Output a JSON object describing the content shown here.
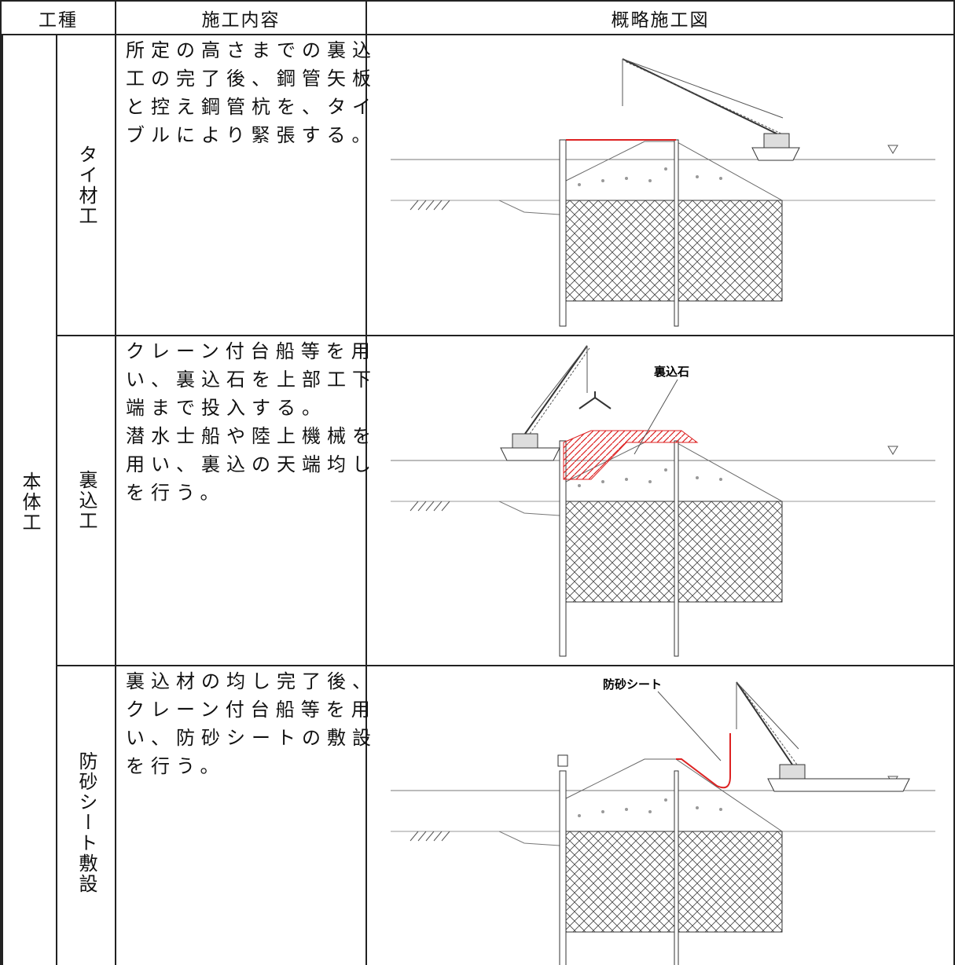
{
  "header": {
    "columns": [
      "工種",
      "施工内容",
      "概略施工図"
    ]
  },
  "table": {
    "group": "本体工",
    "rows": [
      {
        "type": "タイ材工",
        "content": [
          "所定の高さまでの裏込",
          "工の完了後、鋼管矢板",
          "と控え鋼管杭を、タイ",
          "ブルにより緊張する。"
        ]
      },
      {
        "type": "裏込工",
        "content": [
          "クレーン付台船等を用",
          "い、裏込石を上部工下",
          "端まで投入する。",
          "潜水士船や陸上機械を",
          "用い、裏込の天端均し",
          "を行う。"
        ],
        "figure_label": "裏込石"
      },
      {
        "type": "防砂シート敷設",
        "content": [
          "裏込材の均し完了後、",
          "クレーン付台船等を用",
          "い、防砂シートの敷設",
          "を行う。"
        ],
        "figure_label": "防砂シート"
      }
    ]
  }
}
